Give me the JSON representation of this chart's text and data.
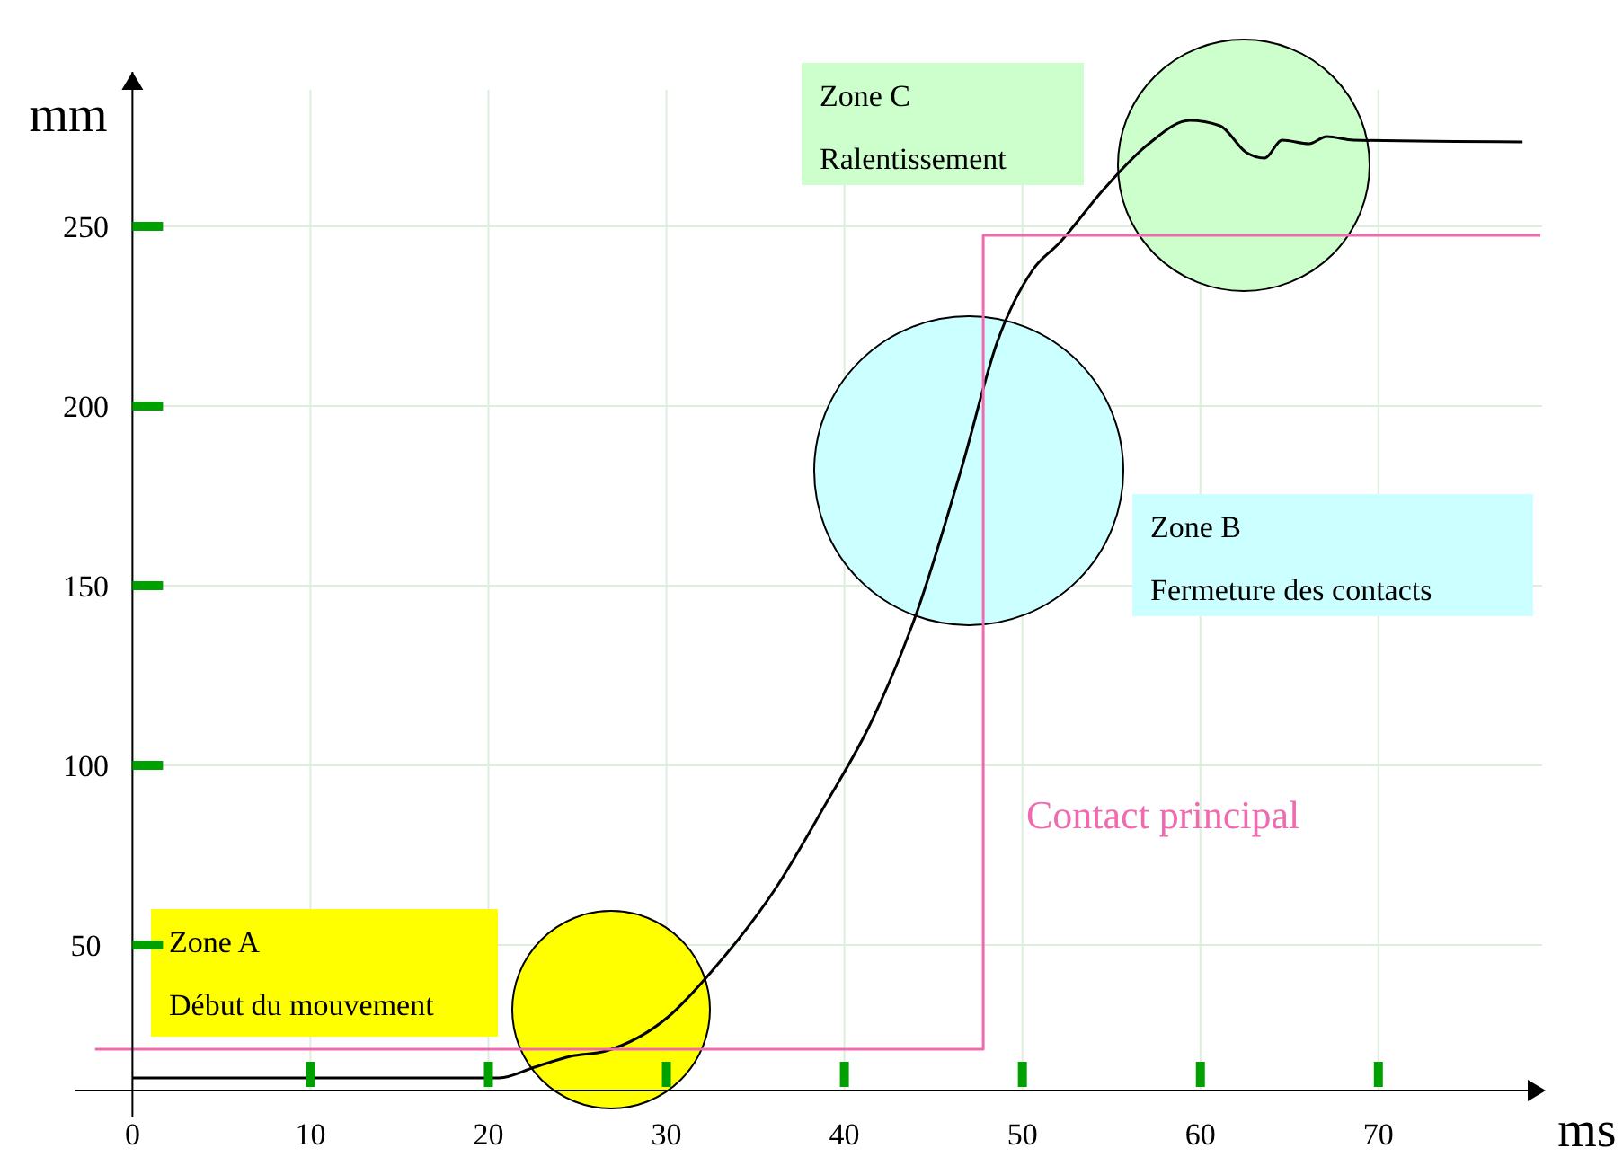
{
  "chart_data": {
    "type": "line",
    "xlabel": "ms",
    "ylabel": "mm",
    "xlim": [
      -3.2,
      79.2
    ],
    "ylim": [
      9.5,
      293
    ],
    "xticks": [
      0,
      10,
      20,
      30,
      40,
      50,
      60,
      70
    ],
    "yticks": [
      50,
      100,
      150,
      200,
      250
    ],
    "grid": true,
    "series": [
      {
        "color": "#000000",
        "x": [
          0,
          20.6,
          22.6,
          24.6,
          26.6,
          30.1,
          32.6,
          36.1,
          38.8,
          41.6,
          44.1,
          46.6,
          48.6,
          50.6,
          52.1,
          54.6,
          57.1,
          59.4,
          61.1,
          62.6,
          63.6,
          64.6,
          66.1,
          67.1,
          68.6,
          78.1
        ],
        "values": [
          13,
          13,
          16,
          19,
          20.5,
          30,
          43,
          65.5,
          88,
          113,
          143,
          183,
          218,
          238,
          245.5,
          260.5,
          273,
          279.5,
          278,
          270.5,
          269,
          274,
          273,
          275,
          274,
          273.5
        ]
      },
      {
        "name": "Contact principal",
        "type": "step",
        "color": "#f06ab0",
        "x": [
          -2.1,
          47.8,
          79.1
        ],
        "values": [
          21,
          247.5,
          247.5
        ]
      }
    ],
    "annotations": [
      "Zone A",
      "Début du mouvement",
      "Zone B",
      "Fermeture des contacts",
      "Zone C",
      "Ralentissement"
    ]
  }
}
